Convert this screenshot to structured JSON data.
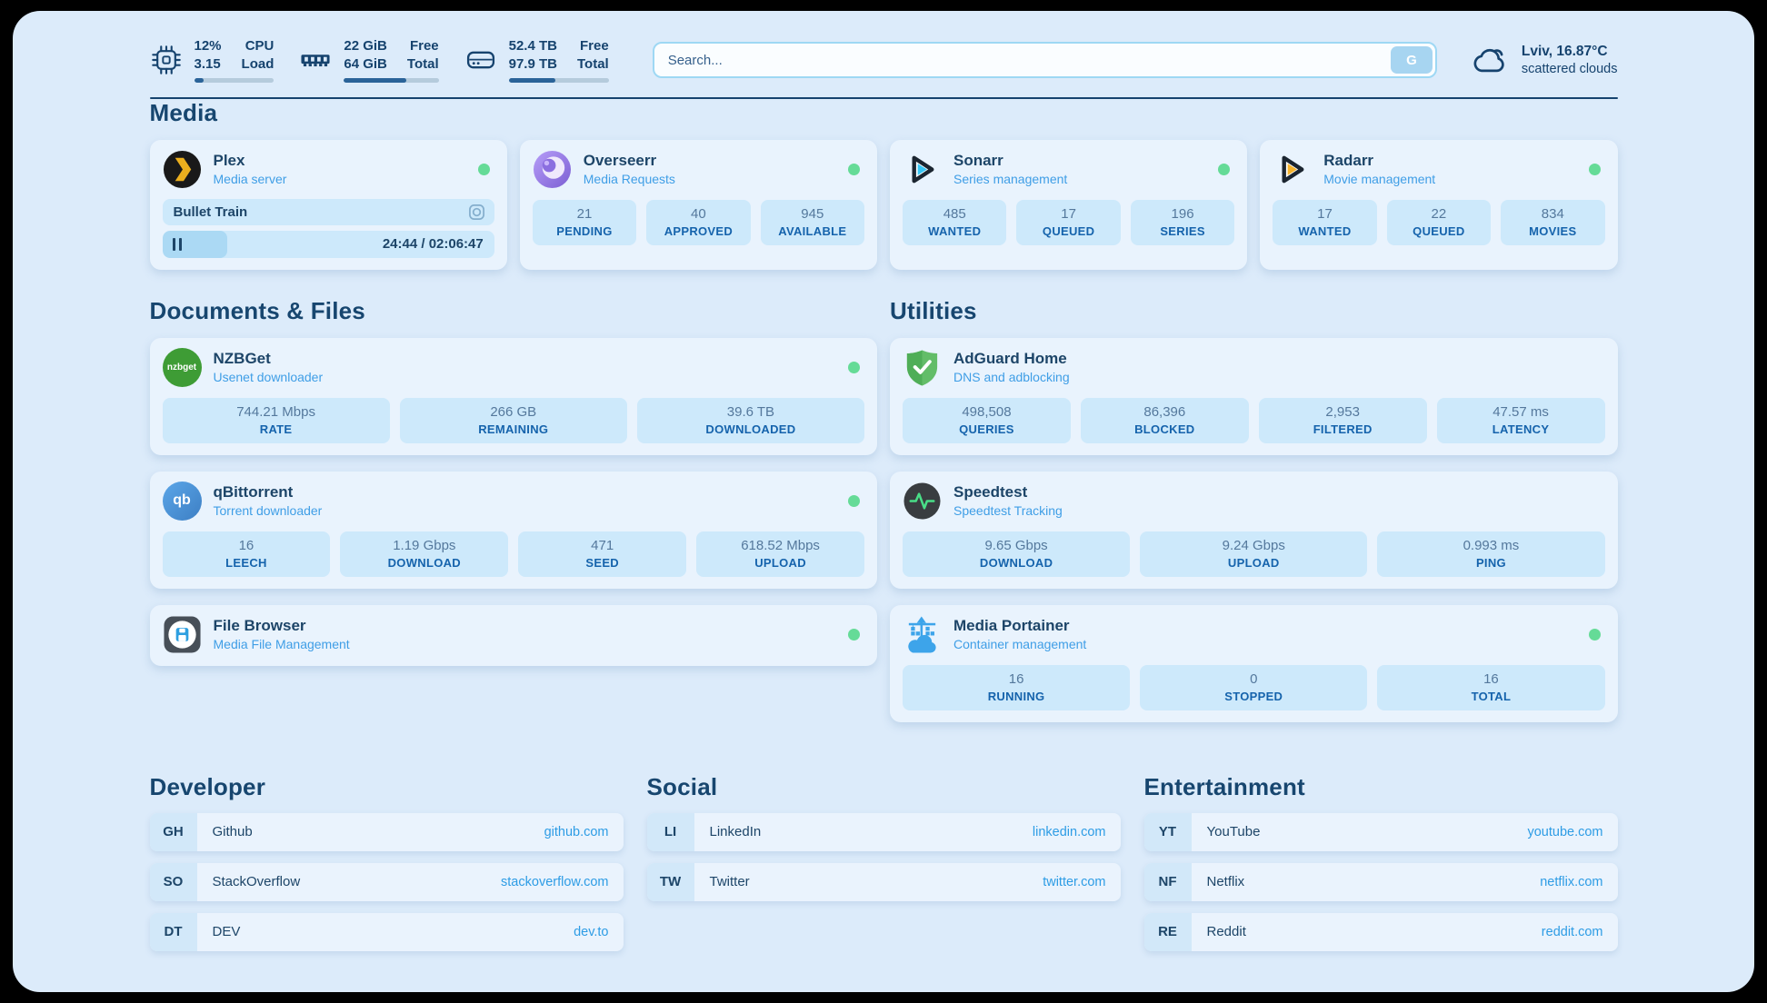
{
  "colors": {
    "status_green": "#65db97",
    "accent_navy": "#16436e",
    "subtitle_blue": "#3f9ee6",
    "link_blue": "#2d9ce5",
    "stat_label_blue": "#1563ac"
  },
  "topbar": {
    "stats": [
      {
        "name": "cpu",
        "values": [
          "12%",
          "3.15"
        ],
        "labels": [
          "CPU",
          "Load"
        ],
        "progress_pct": 12
      },
      {
        "name": "memory",
        "values": [
          "22 GiB",
          "64 GiB"
        ],
        "labels": [
          "Free",
          "Total"
        ],
        "progress_pct": 66
      },
      {
        "name": "storage",
        "values": [
          "52.4 TB",
          "97.9 TB"
        ],
        "labels": [
          "Free",
          "Total"
        ],
        "progress_pct": 47
      }
    ],
    "search": {
      "placeholder": "Search...",
      "button_label": "G"
    },
    "weather": {
      "location": "Lviv, 16.87°C",
      "condition": "scattered clouds"
    }
  },
  "media": {
    "title": "Media",
    "plex": {
      "name": "Plex",
      "subtitle": "Media server",
      "now_playing": {
        "title": "Bullet Train",
        "time": "24:44 / 02:06:47",
        "progress_pct": 19.5
      }
    },
    "overseerr": {
      "name": "Overseerr",
      "subtitle": "Media Requests",
      "stats": [
        {
          "value": "21",
          "label": "PENDING"
        },
        {
          "value": "40",
          "label": "APPROVED"
        },
        {
          "value": "945",
          "label": "AVAILABLE"
        }
      ]
    },
    "sonarr": {
      "name": "Sonarr",
      "subtitle": "Series management",
      "stats": [
        {
          "value": "485",
          "label": "WANTED"
        },
        {
          "value": "17",
          "label": "QUEUED"
        },
        {
          "value": "196",
          "label": "SERIES"
        }
      ]
    },
    "radarr": {
      "name": "Radarr",
      "subtitle": "Movie management",
      "stats": [
        {
          "value": "17",
          "label": "WANTED"
        },
        {
          "value": "22",
          "label": "QUEUED"
        },
        {
          "value": "834",
          "label": "MOVIES"
        }
      ]
    }
  },
  "documents": {
    "title": "Documents & Files",
    "nzbget": {
      "name": "NZBGet",
      "subtitle": "Usenet downloader",
      "stats": [
        {
          "value": "744.21 Mbps",
          "label": "RATE"
        },
        {
          "value": "266 GB",
          "label": "REMAINING"
        },
        {
          "value": "39.6 TB",
          "label": "DOWNLOADED"
        }
      ]
    },
    "qbittorrent": {
      "name": "qBittorrent",
      "subtitle": "Torrent downloader",
      "stats": [
        {
          "value": "16",
          "label": "LEECH"
        },
        {
          "value": "1.19 Gbps",
          "label": "DOWNLOAD"
        },
        {
          "value": "471",
          "label": "SEED"
        },
        {
          "value": "618.52 Mbps",
          "label": "UPLOAD"
        }
      ]
    },
    "filebrowser": {
      "name": "File Browser",
      "subtitle": "Media File Management"
    }
  },
  "utilities": {
    "title": "Utilities",
    "adguard": {
      "name": "AdGuard Home",
      "subtitle": "DNS and adblocking",
      "stats": [
        {
          "value": "498,508",
          "label": "QUERIES"
        },
        {
          "value": "86,396",
          "label": "BLOCKED"
        },
        {
          "value": "2,953",
          "label": "FILTERED"
        },
        {
          "value": "47.57 ms",
          "label": "LATENCY"
        }
      ]
    },
    "speedtest": {
      "name": "Speedtest",
      "subtitle": "Speedtest Tracking",
      "stats": [
        {
          "value": "9.65 Gbps",
          "label": "DOWNLOAD"
        },
        {
          "value": "9.24 Gbps",
          "label": "UPLOAD"
        },
        {
          "value": "0.993 ms",
          "label": "PING"
        }
      ]
    },
    "portainer": {
      "name": "Media Portainer",
      "subtitle": "Container management",
      "stats": [
        {
          "value": "16",
          "label": "RUNNING"
        },
        {
          "value": "0",
          "label": "STOPPED"
        },
        {
          "value": "16",
          "label": "TOTAL"
        }
      ]
    }
  },
  "bookmarks": {
    "developer": {
      "title": "Developer",
      "items": [
        {
          "abbr": "GH",
          "name": "Github",
          "url": "github.com"
        },
        {
          "abbr": "SO",
          "name": "StackOverflow",
          "url": "stackoverflow.com"
        },
        {
          "abbr": "DT",
          "name": "DEV",
          "url": "dev.to"
        }
      ]
    },
    "social": {
      "title": "Social",
      "items": [
        {
          "abbr": "LI",
          "name": "LinkedIn",
          "url": "linkedin.com"
        },
        {
          "abbr": "TW",
          "name": "Twitter",
          "url": "twitter.com"
        }
      ]
    },
    "entertainment": {
      "title": "Entertainment",
      "items": [
        {
          "abbr": "YT",
          "name": "YouTube",
          "url": "youtube.com"
        },
        {
          "abbr": "NF",
          "name": "Netflix",
          "url": "netflix.com"
        },
        {
          "abbr": "RE",
          "name": "Reddit",
          "url": "reddit.com"
        }
      ]
    }
  }
}
